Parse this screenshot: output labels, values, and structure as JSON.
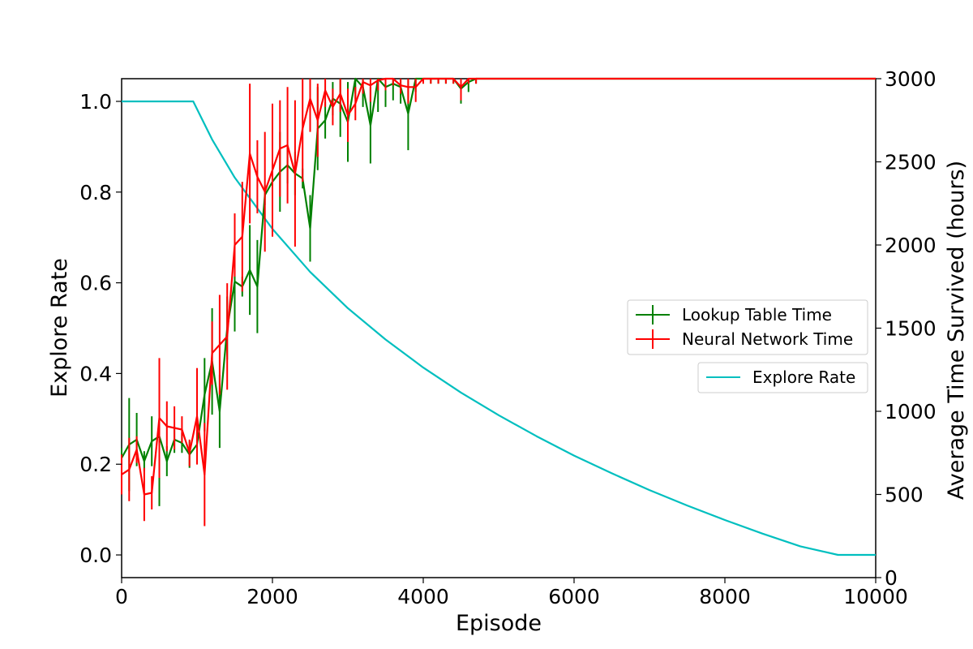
{
  "chart_data": {
    "type": "line",
    "x_axis": {
      "label": "Episode",
      "range": [
        0,
        10000
      ],
      "ticks": [
        0,
        2000,
        4000,
        6000,
        8000,
        10000
      ]
    },
    "left_axis": {
      "label": "Explore Rate",
      "range": [
        -0.05,
        1.05
      ],
      "ticks": [
        0.0,
        0.2,
        0.4,
        0.6,
        0.8,
        1.0
      ],
      "tick_labels": [
        "0.0",
        "0.2",
        "0.4",
        "0.6",
        "0.8",
        "1.0"
      ]
    },
    "right_axis": {
      "label": "Average Time Survived (hours)",
      "range": [
        0,
        3000
      ],
      "ticks": [
        0,
        500,
        1000,
        1500,
        2000,
        2500,
        3000
      ]
    },
    "grid": false,
    "legends": [
      {
        "placement": "center-right",
        "entries": [
          "Lookup Table Time",
          "Neural Network Time"
        ]
      },
      {
        "placement": "right",
        "entries": [
          "Explore Rate"
        ]
      }
    ],
    "series": [
      {
        "name": "Lookup Table Time",
        "axis": "right",
        "color": "#008000",
        "errorbars": true,
        "x": [
          0,
          100,
          200,
          300,
          400,
          500,
          600,
          700,
          800,
          900,
          1000,
          1100,
          1200,
          1300,
          1400,
          1500,
          1600,
          1700,
          1800,
          1900,
          2000,
          2100,
          2200,
          2300,
          2400,
          2500,
          2600,
          2700,
          2800,
          2900,
          3000,
          3100,
          3200,
          3300,
          3400,
          3500,
          3600,
          3700,
          3800,
          3900,
          4000,
          4100,
          4200,
          4300,
          4400,
          4500,
          4600,
          4700,
          4800,
          4900,
          5000,
          6000,
          7000,
          8000,
          9000,
          10000
        ],
        "y": [
          720,
          800,
          830,
          700,
          820,
          850,
          700,
          830,
          810,
          740,
          800,
          1100,
          1300,
          1000,
          1500,
          1780,
          1750,
          1850,
          1750,
          2300,
          2380,
          2440,
          2480,
          2430,
          2400,
          2100,
          2700,
          2750,
          2880,
          2850,
          2740,
          3000,
          2950,
          2720,
          3000,
          2950,
          2970,
          2950,
          2790,
          3000,
          3000,
          3000,
          3000,
          3000,
          3000,
          2940,
          2980,
          3000,
          3000,
          3000,
          3000,
          3000,
          3000,
          3000,
          3000,
          3000
        ],
        "err": [
          60,
          280,
          160,
          60,
          150,
          420,
          90,
          80,
          60,
          80,
          100,
          220,
          320,
          220,
          190,
          300,
          60,
          270,
          280,
          60,
          280,
          240,
          110,
          130,
          60,
          200,
          250,
          110,
          100,
          200,
          240,
          120,
          120,
          230,
          200,
          120,
          100,
          100,
          220,
          80,
          30,
          30,
          30,
          30,
          30,
          90,
          60,
          30,
          0,
          0,
          0,
          0,
          0,
          0,
          0,
          0
        ]
      },
      {
        "name": "Neural Network Time",
        "axis": "right",
        "color": "#ff0000",
        "errorbars": true,
        "x": [
          0,
          100,
          200,
          300,
          400,
          500,
          600,
          700,
          800,
          900,
          1000,
          1100,
          1200,
          1300,
          1400,
          1500,
          1600,
          1700,
          1800,
          1900,
          2000,
          2100,
          2200,
          2300,
          2400,
          2500,
          2600,
          2700,
          2800,
          2900,
          3000,
          3100,
          3200,
          3300,
          3400,
          3500,
          3600,
          3700,
          3800,
          3900,
          4000,
          4100,
          4200,
          4300,
          4400,
          4500,
          4600,
          4700,
          4800,
          4900,
          5000,
          6000,
          7000,
          8000,
          9000,
          10000
        ],
        "y": [
          620,
          650,
          770,
          500,
          510,
          960,
          910,
          900,
          890,
          750,
          970,
          620,
          1350,
          1400,
          1450,
          2000,
          2050,
          2550,
          2410,
          2320,
          2450,
          2580,
          2600,
          2430,
          2700,
          2880,
          2750,
          2930,
          2830,
          2910,
          2780,
          2850,
          2980,
          2960,
          2990,
          3000,
          3000,
          2960,
          2950,
          2950,
          3000,
          3000,
          3000,
          3000,
          3000,
          2950,
          3000,
          3000,
          3000,
          3000,
          3000,
          3000,
          3000,
          3000,
          3000,
          3000
        ],
        "err": [
          120,
          190,
          80,
          160,
          100,
          360,
          150,
          130,
          80,
          80,
          290,
          310,
          190,
          300,
          320,
          190,
          330,
          420,
          220,
          360,
          400,
          290,
          350,
          440,
          320,
          200,
          220,
          100,
          110,
          110,
          160,
          100,
          70,
          100,
          60,
          70,
          40,
          50,
          100,
          90,
          30,
          30,
          30,
          30,
          30,
          80,
          30,
          30,
          0,
          0,
          0,
          0,
          0,
          0,
          0,
          0
        ]
      },
      {
        "name": "Explore Rate",
        "axis": "left",
        "color": "#00bfbf",
        "errorbars": false,
        "x": [
          0,
          950,
          1200,
          1500,
          2000,
          2500,
          3000,
          3500,
          4000,
          4500,
          5000,
          5500,
          6000,
          6500,
          7000,
          7500,
          8000,
          8500,
          9000,
          9500,
          10000
        ],
        "y": [
          1.0,
          1.0,
          0.916,
          0.832,
          0.719,
          0.624,
          0.544,
          0.475,
          0.413,
          0.358,
          0.308,
          0.262,
          0.219,
          0.18,
          0.143,
          0.109,
          0.077,
          0.047,
          0.019,
          0.0,
          0.0
        ]
      }
    ]
  }
}
